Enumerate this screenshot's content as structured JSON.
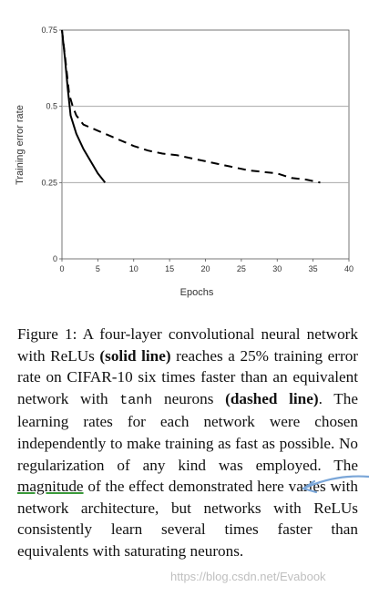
{
  "chart_data": {
    "type": "line",
    "xlabel": "Epochs",
    "ylabel": "Training error rate",
    "xlim": [
      0,
      40
    ],
    "ylim": [
      0,
      0.75
    ],
    "x_ticks": [
      "0",
      "5",
      "10",
      "15",
      "20",
      "25",
      "30",
      "35",
      "40"
    ],
    "y_ticks": [
      "0",
      "0.25",
      "0.5",
      "0.75"
    ],
    "grid": "horizontal",
    "series": [
      {
        "style": "solid",
        "points": [
          [
            0,
            0.75
          ],
          [
            0.4,
            0.66
          ],
          [
            0.8,
            0.56
          ],
          [
            1.2,
            0.47
          ],
          [
            2,
            0.41
          ],
          [
            3,
            0.36
          ],
          [
            4,
            0.32
          ],
          [
            5,
            0.28
          ],
          [
            6,
            0.25
          ]
        ]
      },
      {
        "style": "dashed",
        "points": [
          [
            0,
            0.75
          ],
          [
            0.5,
            0.65
          ],
          [
            1,
            0.54
          ],
          [
            1.5,
            0.5
          ],
          [
            2,
            0.47
          ],
          [
            3,
            0.44
          ],
          [
            4,
            0.43
          ],
          [
            5,
            0.42
          ],
          [
            6,
            0.41
          ],
          [
            7,
            0.4
          ],
          [
            8,
            0.39
          ],
          [
            9,
            0.38
          ],
          [
            10,
            0.37
          ],
          [
            12,
            0.355
          ],
          [
            14,
            0.345
          ],
          [
            16,
            0.34
          ],
          [
            18,
            0.33
          ],
          [
            20,
            0.32
          ],
          [
            22,
            0.31
          ],
          [
            24,
            0.3
          ],
          [
            26,
            0.29
          ],
          [
            28,
            0.285
          ],
          [
            30,
            0.28
          ],
          [
            32,
            0.265
          ],
          [
            34,
            0.26
          ],
          [
            36,
            0.25
          ]
        ]
      }
    ]
  },
  "caption": {
    "label": "Figure 1:",
    "p1": " A four-layer convolutional neural network with ReLUs ",
    "solid": "(solid line)",
    "p2": " reaches a 25% training error rate on CIFAR-10 six times faster than an equivalent network with ",
    "tanh": "tanh",
    "p3": " neurons ",
    "dashed": "(dashed line)",
    "p4": ". The learning rates for each network were chosen independently to make training as fast as possible. No regularization of any kind was employed. The ",
    "magnitude": "magnitude",
    "p5": " of the effect demonstrated here varies with network architecture, but networks with ReLUs consistently learn several times faster than equivalents with saturating neurons."
  },
  "watermark": "https://blog.csdn.net/Evabook",
  "colors": {
    "grid": "#a8a8a8",
    "line": "#000000",
    "annotation": "#7aa6d8",
    "underline": "#3a9a3a"
  }
}
